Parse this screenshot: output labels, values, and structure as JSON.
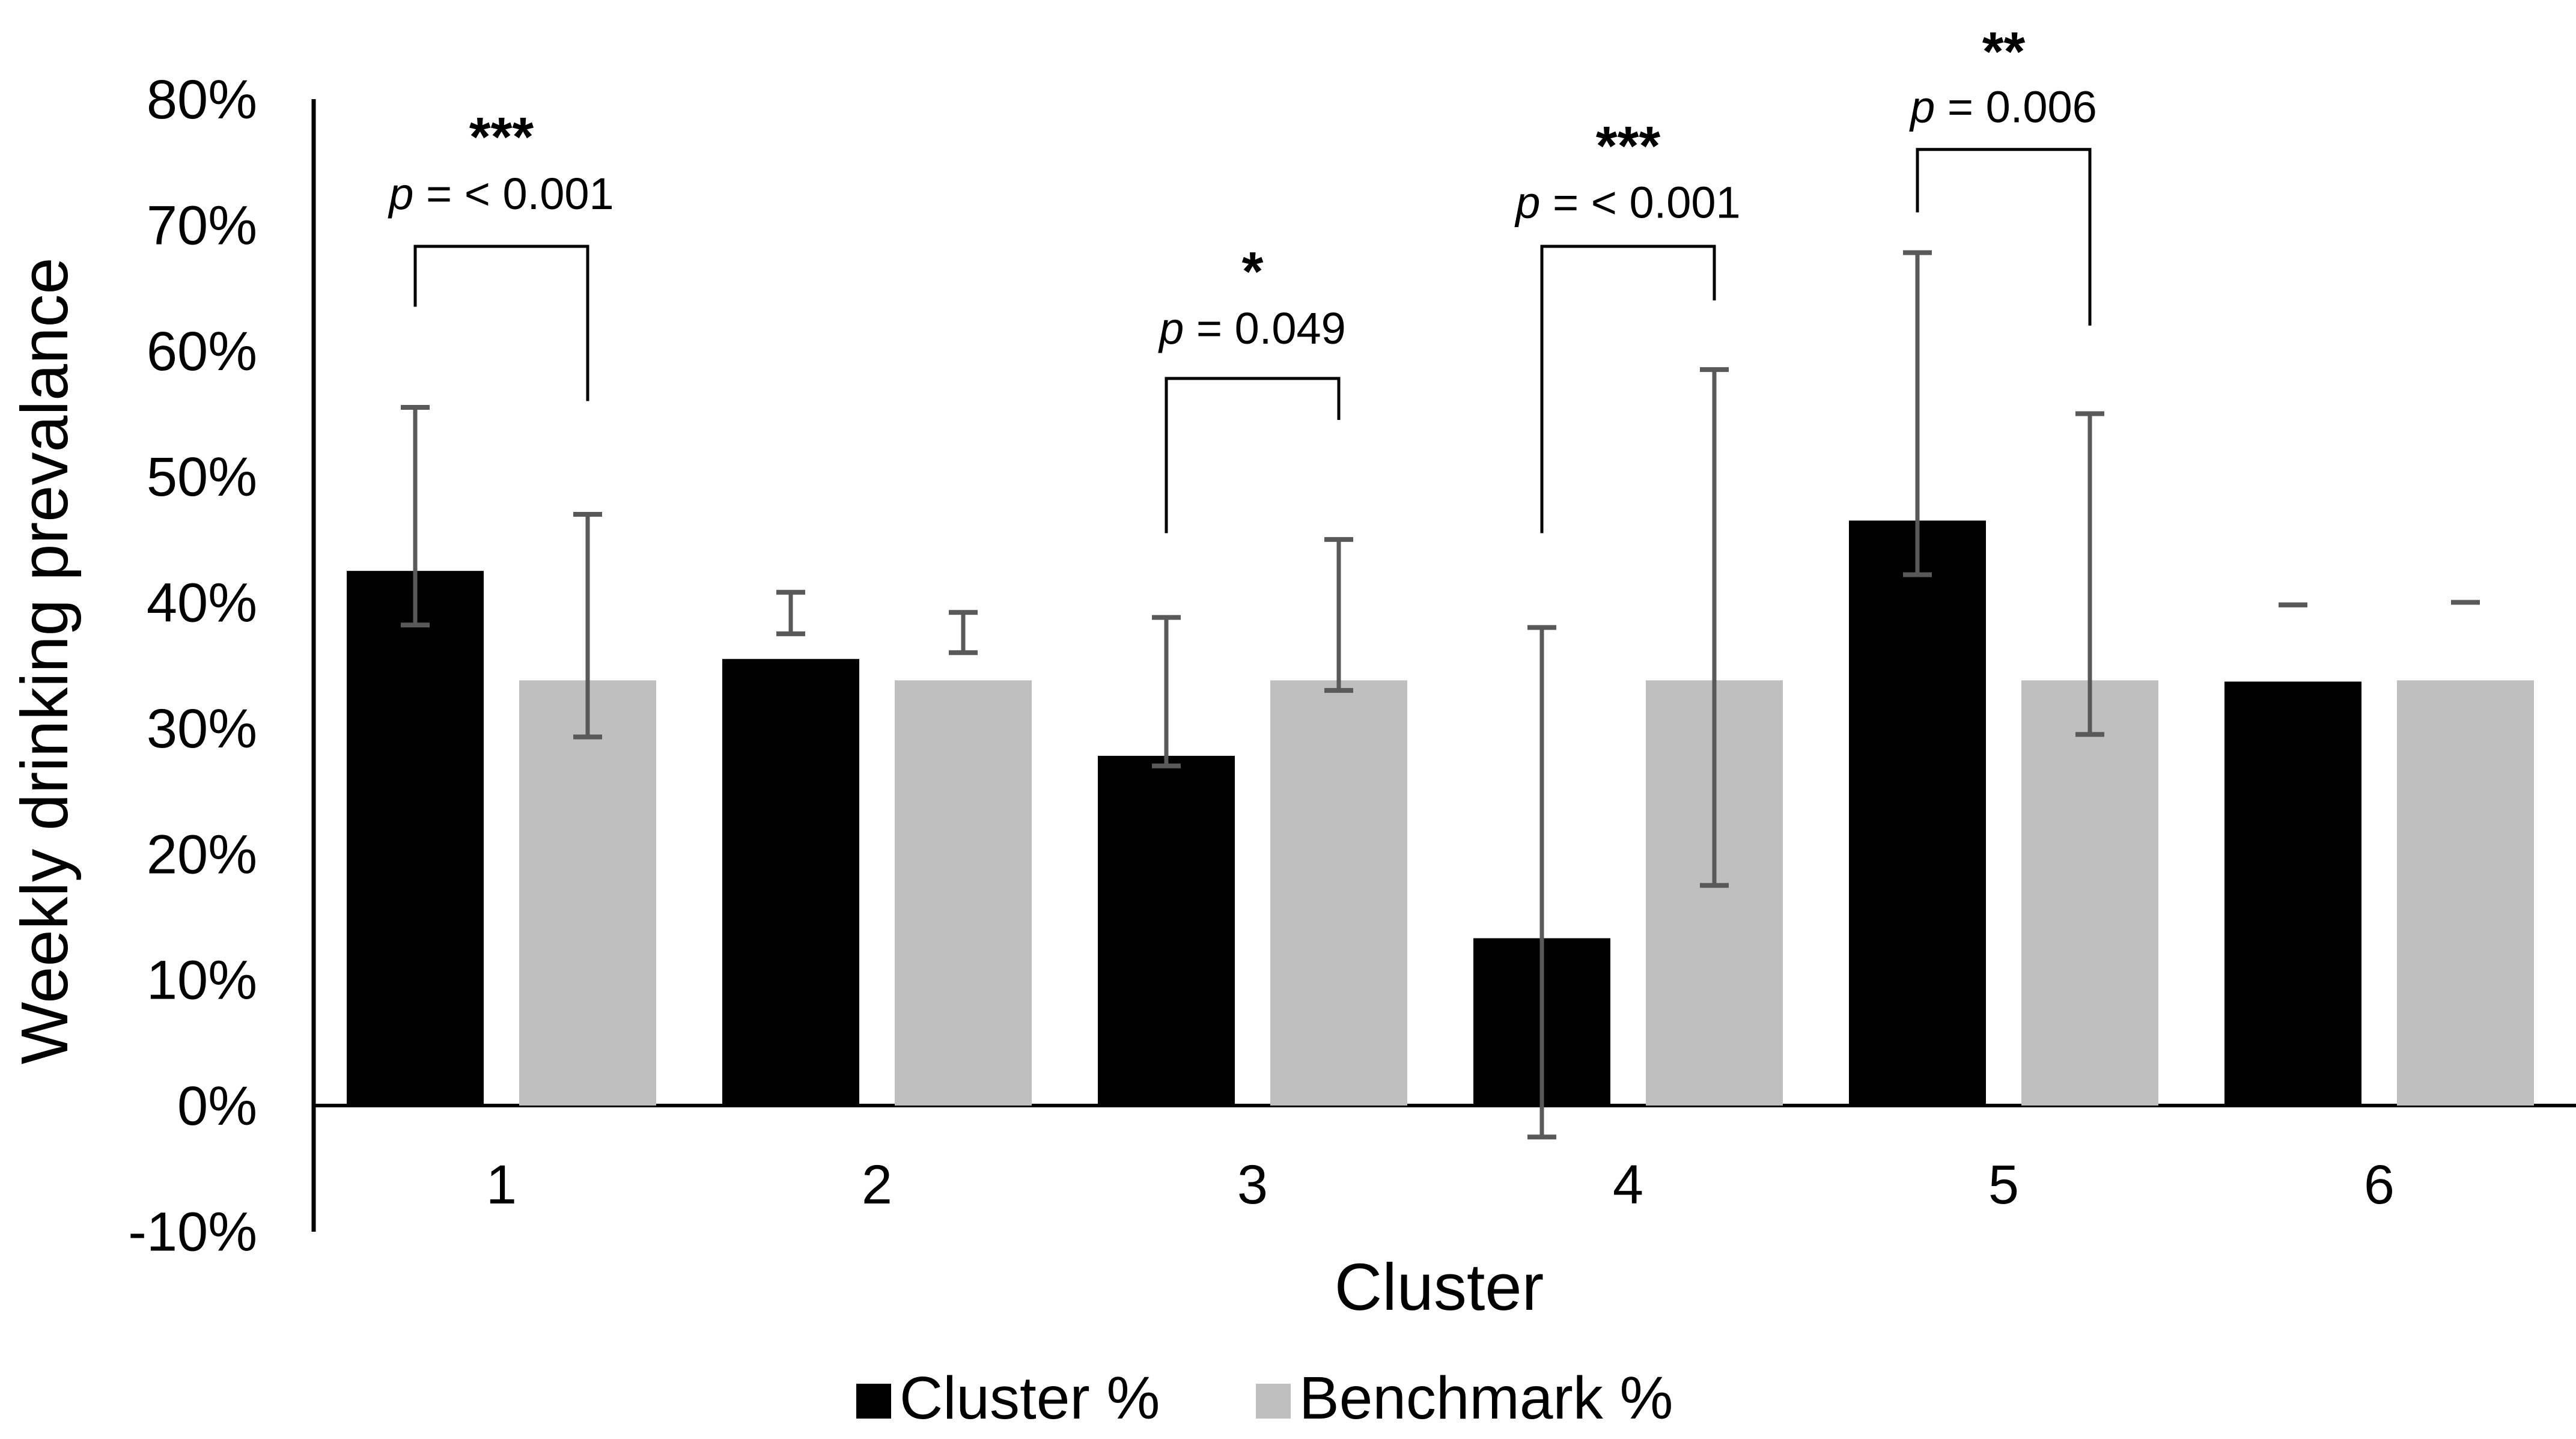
{
  "chart_data": {
    "type": "bar",
    "title": "",
    "xlabel": "Cluster",
    "ylabel": "Weekly drinking prevalance",
    "categories": [
      "1",
      "2",
      "3",
      "4",
      "5",
      "6"
    ],
    "ylim": [
      -10,
      80
    ],
    "yticks": [
      -10,
      0,
      10,
      20,
      30,
      40,
      50,
      60,
      70,
      80
    ],
    "ytick_labels": [
      "-10%",
      "0%",
      "10%",
      "20%",
      "30%",
      "40%",
      "50%",
      "60%",
      "70%",
      "80%"
    ],
    "grid": false,
    "legend_position": "bottom-center",
    "series": [
      {
        "name": "Cluster %",
        "color": "#000000",
        "values": [
          42.5,
          35.5,
          27.8,
          13.3,
          46.5,
          33.7
        ],
        "error_low": [
          38.2,
          37.5,
          27.0,
          -2.5,
          42.2,
          39.8
        ],
        "error_high": [
          55.5,
          40.8,
          38.8,
          38.0,
          67.8,
          39.8
        ]
      },
      {
        "name": "Benchmark %",
        "color": "#bfbfbf",
        "values": [
          33.8,
          33.8,
          33.8,
          33.8,
          33.8,
          33.8
        ],
        "error_low": [
          29.3,
          36.0,
          33.0,
          17.5,
          29.5,
          40.0
        ],
        "error_high": [
          47.0,
          39.2,
          45.0,
          58.5,
          55.0,
          40.0
        ]
      }
    ],
    "annotations": [
      {
        "cluster": "1",
        "stars": "***",
        "p_prefix": "p",
        "p_text": " = < 0.001",
        "bracket_y": 68.3,
        "left_drop": 63.5,
        "right_drop": 56.0,
        "stars_y": 77.2,
        "p_y": 72.5
      },
      {
        "cluster": "3",
        "stars": "*",
        "p_prefix": "p",
        "p_text": " = 0.049",
        "bracket_y": 57.8,
        "left_drop": 45.5,
        "right_drop": 54.5,
        "stars_y": 66.5,
        "p_y": 61.8
      },
      {
        "cluster": "4",
        "stars": "***",
        "p_prefix": "p",
        "p_text": " = < 0.001",
        "bracket_y": 68.3,
        "left_drop": 45.5,
        "right_drop": 64.0,
        "stars_y": 76.5,
        "p_y": 71.8
      },
      {
        "cluster": "5",
        "stars": "**",
        "p_prefix": "p",
        "p_text": " = 0.006",
        "bracket_y": 76.0,
        "left_drop": 71.0,
        "right_drop": 62.0,
        "stars_y": 84.0,
        "p_y": 79.4
      }
    ]
  }
}
